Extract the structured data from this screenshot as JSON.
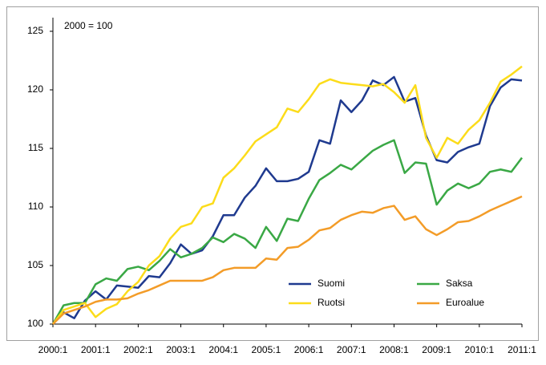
{
  "chart_data": {
    "type": "line",
    "annotation": "2000 = 100",
    "categories": [
      "2000:1",
      null,
      null,
      null,
      "2001:1",
      null,
      null,
      null,
      "2002:1",
      null,
      null,
      null,
      "2003:1",
      null,
      null,
      null,
      "2004:1",
      null,
      null,
      null,
      "2005:1",
      null,
      null,
      null,
      "2006:1",
      null,
      null,
      null,
      "2007:1",
      null,
      null,
      null,
      "2008:1",
      null,
      null,
      null,
      "2009:1",
      null,
      null,
      null,
      "2010:1",
      null,
      null,
      null,
      "2011:1"
    ],
    "series": [
      {
        "name": "Suomi",
        "color": "#1f3a8f",
        "values": [
          100,
          101.0,
          100.5,
          102.0,
          102.8,
          102.1,
          103.3,
          103.2,
          103.1,
          104.1,
          104.0,
          105.2,
          106.8,
          106.0,
          106.3,
          107.5,
          109.3,
          109.3,
          110.8,
          111.8,
          113.3,
          112.2,
          112.2,
          112.4,
          113.0,
          115.7,
          115.4,
          119.1,
          118.1,
          119.1,
          120.8,
          120.4,
          121.1,
          119.0,
          119.3,
          116.1,
          114.0,
          113.8,
          114.7,
          115.1,
          115.4,
          118.6,
          120.2,
          120.9,
          120.8
        ]
      },
      {
        "name": "Saksa",
        "color": "#3aa845",
        "values": [
          100,
          101.6,
          101.8,
          101.8,
          103.4,
          103.9,
          103.7,
          104.7,
          104.9,
          104.6,
          105.4,
          106.4,
          105.7,
          106.0,
          106.5,
          107.4,
          107.0,
          107.7,
          107.3,
          106.5,
          108.3,
          107.1,
          109.0,
          108.8,
          110.7,
          112.3,
          112.9,
          113.6,
          113.2,
          114.0,
          114.8,
          115.3,
          115.7,
          112.9,
          113.8,
          113.7,
          110.2,
          111.4,
          112.0,
          111.6,
          112.0,
          113.0,
          113.2,
          113.0,
          114.2
        ]
      },
      {
        "name": "Ruotsi",
        "color": "#fcdc1a",
        "values": [
          100,
          101.2,
          101.5,
          101.8,
          100.6,
          101.3,
          101.7,
          102.8,
          103.6,
          105.0,
          105.8,
          107.3,
          108.3,
          108.6,
          110.0,
          110.3,
          112.5,
          113.3,
          114.4,
          115.6,
          116.2,
          116.8,
          118.4,
          118.1,
          119.2,
          120.5,
          120.9,
          120.6,
          120.5,
          120.4,
          120.3,
          120.5,
          119.8,
          118.9,
          120.4,
          115.9,
          114.2,
          115.9,
          115.4,
          116.6,
          117.4,
          118.9,
          120.7,
          121.3,
          122.0
        ]
      },
      {
        "name": "Euroalue",
        "color": "#f39c28",
        "values": [
          100,
          100.9,
          101.2,
          101.5,
          101.9,
          102.1,
          102.1,
          102.2,
          102.6,
          102.9,
          103.3,
          103.7,
          103.7,
          103.7,
          103.7,
          104.0,
          104.6,
          104.8,
          104.8,
          104.8,
          105.6,
          105.5,
          106.5,
          106.6,
          107.2,
          108.0,
          108.2,
          108.9,
          109.3,
          109.6,
          109.5,
          109.9,
          110.1,
          108.9,
          109.2,
          108.1,
          107.6,
          108.1,
          108.7,
          108.8,
          109.2,
          109.7,
          110.1,
          110.5,
          110.9
        ]
      }
    ],
    "ylim": [
      100,
      125
    ],
    "yticks": [
      100,
      105,
      110,
      115,
      120,
      125
    ],
    "grid": false,
    "legend": "lower right"
  }
}
